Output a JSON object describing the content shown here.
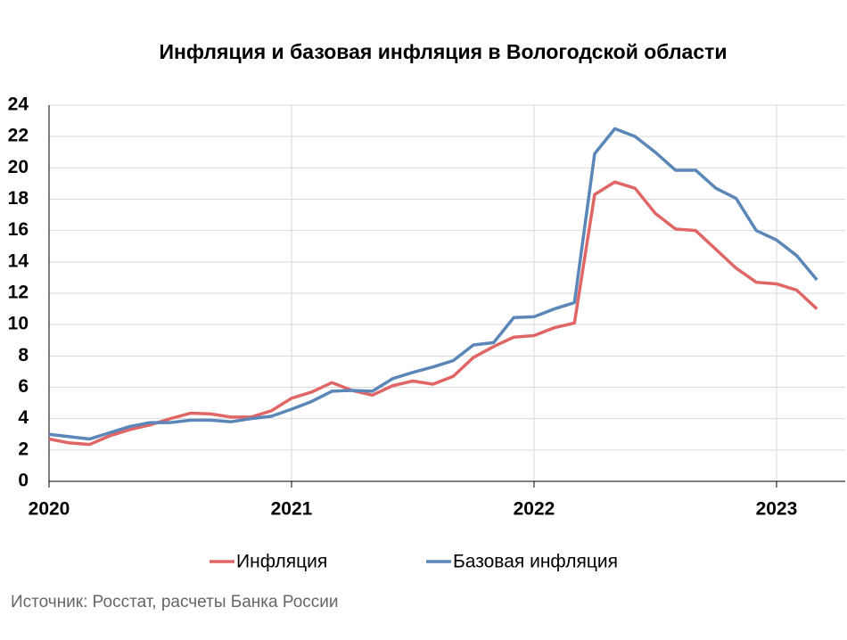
{
  "chart_data": {
    "type": "line",
    "title": "Инфляция и базовая инфляция в Вологодской области",
    "source": "Источник: Росстат, расчеты Банка России",
    "x": [
      0,
      1,
      2,
      3,
      4,
      5,
      6,
      7,
      8,
      9,
      10,
      11,
      12,
      13,
      14,
      15,
      16,
      17,
      18,
      19,
      20,
      21,
      22,
      23,
      24,
      25,
      26,
      27,
      28,
      29,
      30,
      31,
      32,
      33,
      34,
      35,
      36,
      37,
      38
    ],
    "series": [
      {
        "name": "Инфляция",
        "color": "#e06666",
        "values": [
          2.7,
          2.45,
          2.35,
          2.9,
          3.3,
          3.6,
          4.0,
          4.35,
          4.3,
          4.1,
          4.1,
          4.5,
          5.3,
          5.7,
          6.3,
          5.8,
          5.5,
          6.1,
          6.4,
          6.2,
          6.7,
          7.9,
          8.6,
          9.2,
          9.3,
          9.8,
          10.1,
          18.3,
          19.1,
          18.7,
          17.1,
          16.1,
          16.0,
          14.8,
          13.6,
          12.7,
          12.6,
          12.2,
          11.0
        ]
      },
      {
        "name": "Базовая инфляция",
        "color": "#5b86b8",
        "values": [
          3.0,
          2.85,
          2.7,
          3.1,
          3.5,
          3.75,
          3.75,
          3.9,
          3.9,
          3.8,
          4.0,
          4.15,
          4.6,
          5.1,
          5.75,
          5.8,
          5.75,
          6.55,
          6.95,
          7.3,
          7.7,
          8.7,
          8.85,
          10.45,
          10.5,
          11.0,
          11.4,
          20.9,
          22.5,
          22.0,
          21.0,
          19.85,
          19.85,
          18.7,
          18.05,
          16.0,
          15.4,
          14.4,
          12.85
        ]
      }
    ],
    "xlim": [
      0,
      39.4
    ],
    "xticks": [
      {
        "value": 0,
        "label": "2020"
      },
      {
        "value": 12,
        "label": "2021"
      },
      {
        "value": 24,
        "label": "2022"
      },
      {
        "value": 36,
        "label": "2023"
      }
    ],
    "ylim": [
      0,
      24
    ],
    "yticks": [
      0,
      2,
      4,
      6,
      8,
      10,
      12,
      14,
      16,
      18,
      20,
      22,
      24
    ],
    "grid": true
  }
}
